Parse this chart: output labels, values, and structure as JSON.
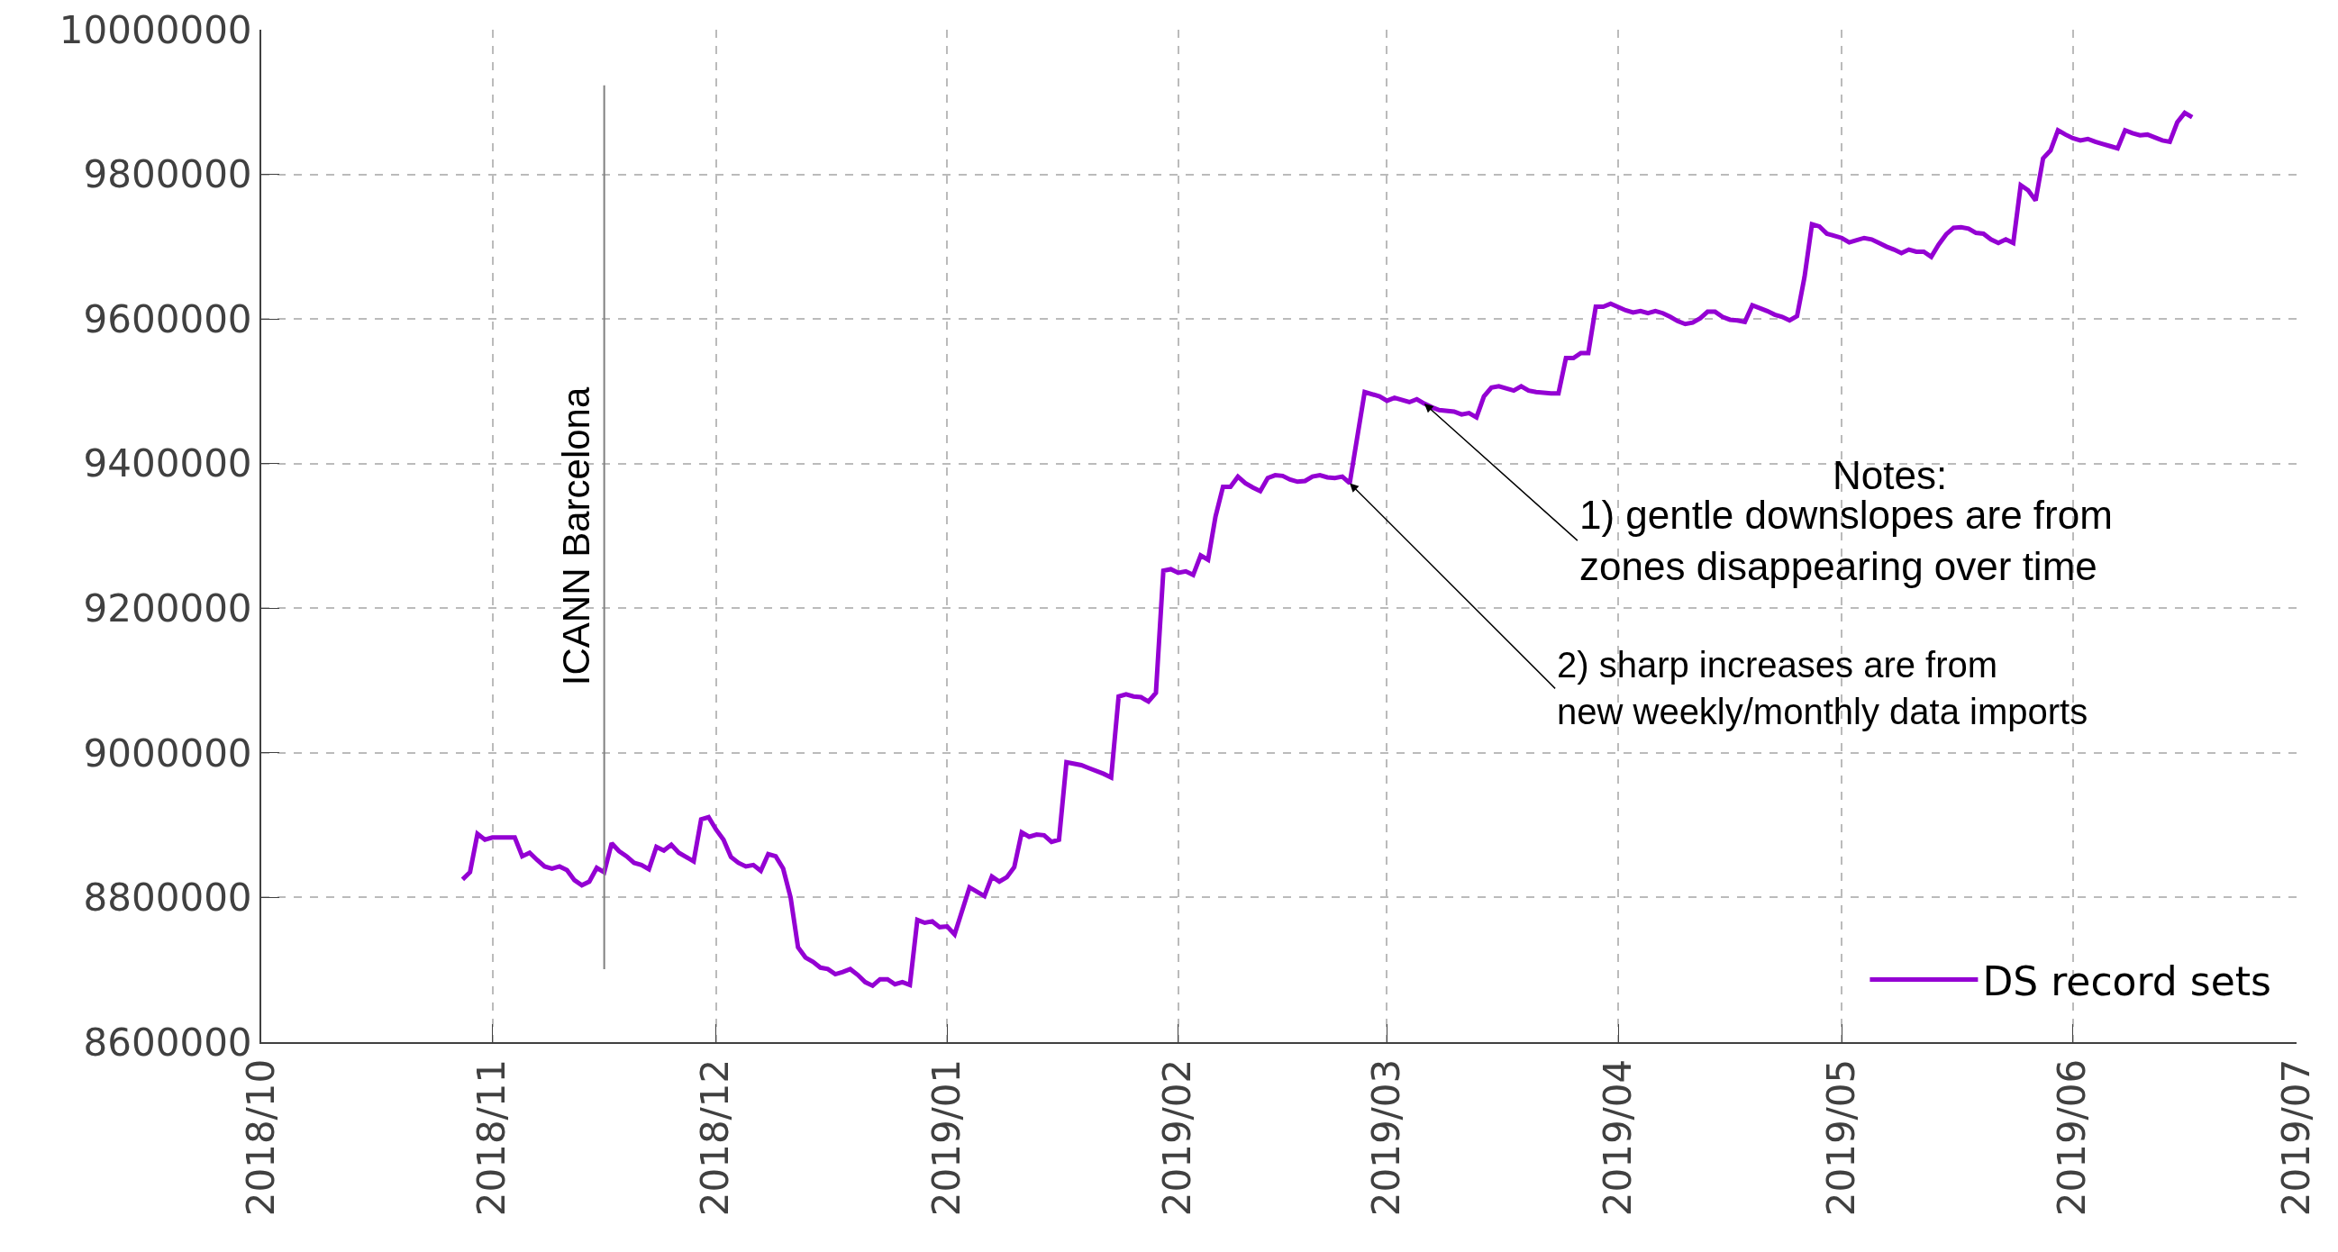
{
  "chart_data": {
    "type": "line",
    "legend": "bottom right",
    "grid": true,
    "line_style": "solid",
    "xlim": [
      "2018-10-01",
      "2019-07-01"
    ],
    "xticks": [
      {
        "value": "2018-10-01",
        "label": "2018/10"
      },
      {
        "value": "2018-11-01",
        "label": "2018/11"
      },
      {
        "value": "2018-12-01",
        "label": "2018/12"
      },
      {
        "value": "2019-01-01",
        "label": "2019/01"
      },
      {
        "value": "2019-02-01",
        "label": "2019/02"
      },
      {
        "value": "2019-03-01",
        "label": "2019/03"
      },
      {
        "value": "2019-04-01",
        "label": "2019/04"
      },
      {
        "value": "2019-05-01",
        "label": "2019/05"
      },
      {
        "value": "2019-06-01",
        "label": "2019/06"
      },
      {
        "value": "2019-07-01",
        "label": "2019/07"
      }
    ],
    "ylim": [
      8600000,
      10000000
    ],
    "yticks": [
      8600000,
      8800000,
      9000000,
      9200000,
      9400000,
      9600000,
      9800000,
      10000000
    ],
    "ref_lines": [
      {
        "axis": "x",
        "value": "2018-11-16",
        "label": "ICANN Barcelona",
        "color": "#808080"
      }
    ],
    "annotations": [
      "Notes:",
      {
        "text": "1) gentle downslopes are from\nzones disappearing over time",
        "x": "2019-03-06",
        "y": 9483000
      },
      {
        "text": "2) sharp increases are from\nnew weekly/monthly data imports",
        "x": "2019-02-24",
        "y": 9373000
      }
    ],
    "series": [
      {
        "name": "DS record sets",
        "color": "#9400d3",
        "x": [
          "2018-10-28",
          "2018-10-29",
          "2018-10-30",
          "2018-10-31",
          "2018-11-01",
          "2018-11-04",
          "2018-11-05",
          "2018-11-06",
          "2018-11-07",
          "2018-11-08",
          "2018-11-09",
          "2018-11-10",
          "2018-11-11",
          "2018-11-12",
          "2018-11-13",
          "2018-11-14",
          "2018-11-15",
          "2018-11-16",
          "2018-11-17",
          "2018-11-18",
          "2018-11-19",
          "2018-11-20",
          "2018-11-21",
          "2018-11-22",
          "2018-11-23",
          "2018-11-24",
          "2018-11-25",
          "2018-11-26",
          "2018-11-28",
          "2018-11-29",
          "2018-11-30",
          "2018-12-01",
          "2018-12-02",
          "2018-12-03",
          "2018-12-04",
          "2018-12-05",
          "2018-12-06",
          "2018-12-07",
          "2018-12-08",
          "2018-12-09",
          "2018-12-10",
          "2018-12-11",
          "2018-12-12",
          "2018-12-13",
          "2018-12-14",
          "2018-12-15",
          "2018-12-16",
          "2018-12-17",
          "2018-12-18",
          "2018-12-19",
          "2018-12-20",
          "2018-12-21",
          "2018-12-22",
          "2018-12-23",
          "2018-12-24",
          "2018-12-25",
          "2018-12-26",
          "2018-12-27",
          "2018-12-28",
          "2018-12-29",
          "2018-12-30",
          "2018-12-31",
          "2019-01-01",
          "2019-01-02",
          "2019-01-04",
          "2019-01-06",
          "2019-01-07",
          "2019-01-08",
          "2019-01-09",
          "2019-01-10",
          "2019-01-11",
          "2019-01-12",
          "2019-01-13",
          "2019-01-14",
          "2019-01-15",
          "2019-01-16",
          "2019-01-17",
          "2019-01-19",
          "2019-01-20",
          "2019-01-22",
          "2019-01-23",
          "2019-01-24",
          "2019-01-25",
          "2019-01-26",
          "2019-01-27",
          "2019-01-28",
          "2019-01-29",
          "2019-01-30",
          "2019-01-31",
          "2019-02-01",
          "2019-02-02",
          "2019-02-03",
          "2019-02-04",
          "2019-02-05",
          "2019-02-06",
          "2019-02-07",
          "2019-02-08",
          "2019-02-09",
          "2019-02-10",
          "2019-02-11",
          "2019-02-12",
          "2019-02-13",
          "2019-02-14",
          "2019-02-15",
          "2019-02-16",
          "2019-02-17",
          "2019-02-18",
          "2019-02-19",
          "2019-02-20",
          "2019-02-21",
          "2019-02-22",
          "2019-02-23",
          "2019-02-24",
          "2019-02-26",
          "2019-02-28",
          "2019-03-01",
          "2019-03-02",
          "2019-03-04",
          "2019-03-05",
          "2019-03-06",
          "2019-03-07",
          "2019-03-08",
          "2019-03-10",
          "2019-03-11",
          "2019-03-12",
          "2019-03-13",
          "2019-03-14",
          "2019-03-15",
          "2019-03-16",
          "2019-03-18",
          "2019-03-19",
          "2019-03-20",
          "2019-03-21",
          "2019-03-23",
          "2019-03-24",
          "2019-03-25",
          "2019-03-26",
          "2019-03-27",
          "2019-03-28",
          "2019-03-29",
          "2019-03-30",
          "2019-03-31",
          "2019-04-02",
          "2019-04-03",
          "2019-04-04",
          "2019-04-05",
          "2019-04-06",
          "2019-04-07",
          "2019-04-08",
          "2019-04-09",
          "2019-04-10",
          "2019-04-11",
          "2019-04-12",
          "2019-04-13",
          "2019-04-14",
          "2019-04-15",
          "2019-04-16",
          "2019-04-17",
          "2019-04-18",
          "2019-04-19",
          "2019-04-20",
          "2019-04-21",
          "2019-04-22",
          "2019-04-23",
          "2019-04-24",
          "2019-04-25",
          "2019-04-26",
          "2019-04-27",
          "2019-04-28",
          "2019-04-29",
          "2019-05-01",
          "2019-05-02",
          "2019-05-03",
          "2019-05-04",
          "2019-05-05",
          "2019-05-06",
          "2019-05-07",
          "2019-05-08",
          "2019-05-09",
          "2019-05-10",
          "2019-05-11",
          "2019-05-12",
          "2019-05-13",
          "2019-05-14",
          "2019-05-15",
          "2019-05-16",
          "2019-05-17",
          "2019-05-18",
          "2019-05-19",
          "2019-05-20",
          "2019-05-21",
          "2019-05-22",
          "2019-05-23",
          "2019-05-24",
          "2019-05-25",
          "2019-05-26",
          "2019-05-27",
          "2019-05-28",
          "2019-05-29",
          "2019-05-30",
          "2019-05-31",
          "2019-06-01",
          "2019-06-02",
          "2019-06-03",
          "2019-06-04",
          "2019-06-05",
          "2019-06-06",
          "2019-06-07",
          "2019-06-08",
          "2019-06-09",
          "2019-06-10",
          "2019-06-11",
          "2019-06-12",
          "2019-06-13",
          "2019-06-14",
          "2019-06-15",
          "2019-06-16",
          "2019-06-17"
        ],
        "values": [
          8825000,
          8835000,
          8888000,
          8880000,
          8883000,
          8883000,
          8857000,
          8862000,
          8852000,
          8843000,
          8840000,
          8843000,
          8838000,
          8824000,
          8817000,
          8822000,
          8841000,
          8835000,
          8875000,
          8864000,
          8857000,
          8848000,
          8845000,
          8839000,
          8870000,
          8865000,
          8873000,
          8862000,
          8850000,
          8908000,
          8911000,
          8894000,
          8880000,
          8856000,
          8848000,
          8843000,
          8845000,
          8837000,
          8860000,
          8857000,
          8840000,
          8800000,
          8731000,
          8717000,
          8711000,
          8703000,
          8701000,
          8694000,
          8697000,
          8701000,
          8693000,
          8683000,
          8678000,
          8687000,
          8687000,
          8680000,
          8683000,
          8679000,
          8769000,
          8765000,
          8767000,
          8759000,
          8760000,
          8749000,
          8814000,
          8802000,
          8829000,
          8822000,
          8828000,
          8842000,
          8890000,
          8884000,
          8887000,
          8886000,
          8877000,
          8880000,
          8987000,
          8983000,
          8979000,
          8971000,
          8966000,
          9078000,
          9081000,
          9078000,
          9077000,
          9071000,
          9083000,
          9252000,
          9254000,
          9249000,
          9251000,
          9246000,
          9273000,
          9267000,
          9327000,
          9368000,
          9368000,
          9382000,
          9373000,
          9367000,
          9362000,
          9380000,
          9384000,
          9383000,
          9378000,
          9375000,
          9376000,
          9382000,
          9384000,
          9381000,
          9380000,
          9382000,
          9373000,
          9499000,
          9493000,
          9487000,
          9491000,
          9485000,
          9489000,
          9483000,
          9478000,
          9474000,
          9472000,
          9468000,
          9470000,
          9464000,
          9493000,
          9505000,
          9507000,
          9501000,
          9507000,
          9501000,
          9499000,
          9497000,
          9497000,
          9546000,
          9546000,
          9553000,
          9553000,
          9617000,
          9617000,
          9621000,
          9612000,
          9609000,
          9611000,
          9608000,
          9611000,
          9608000,
          9603000,
          9597000,
          9593000,
          9595000,
          9601000,
          9610000,
          9610000,
          9603000,
          9599000,
          9598000,
          9596000,
          9619000,
          9615000,
          9611000,
          9606000,
          9603000,
          9598000,
          9604000,
          9658000,
          9731000,
          9728000,
          9718000,
          9712000,
          9706000,
          9709000,
          9712000,
          9710000,
          9705000,
          9700000,
          9696000,
          9691000,
          9696000,
          9693000,
          9693000,
          9686000,
          9703000,
          9717000,
          9726000,
          9727000,
          9725000,
          9719000,
          9718000,
          9710000,
          9705000,
          9710000,
          9705000,
          9785000,
          9778000,
          9764000,
          9822000,
          9833000,
          9861000,
          9855000,
          9850000,
          9847000,
          9849000,
          9845000,
          9842000,
          9839000,
          9836000,
          9861000,
          9857000,
          9854000,
          9855000,
          9851000,
          9847000,
          9845000,
          9872000,
          9885000,
          9879000
        ]
      }
    ]
  }
}
